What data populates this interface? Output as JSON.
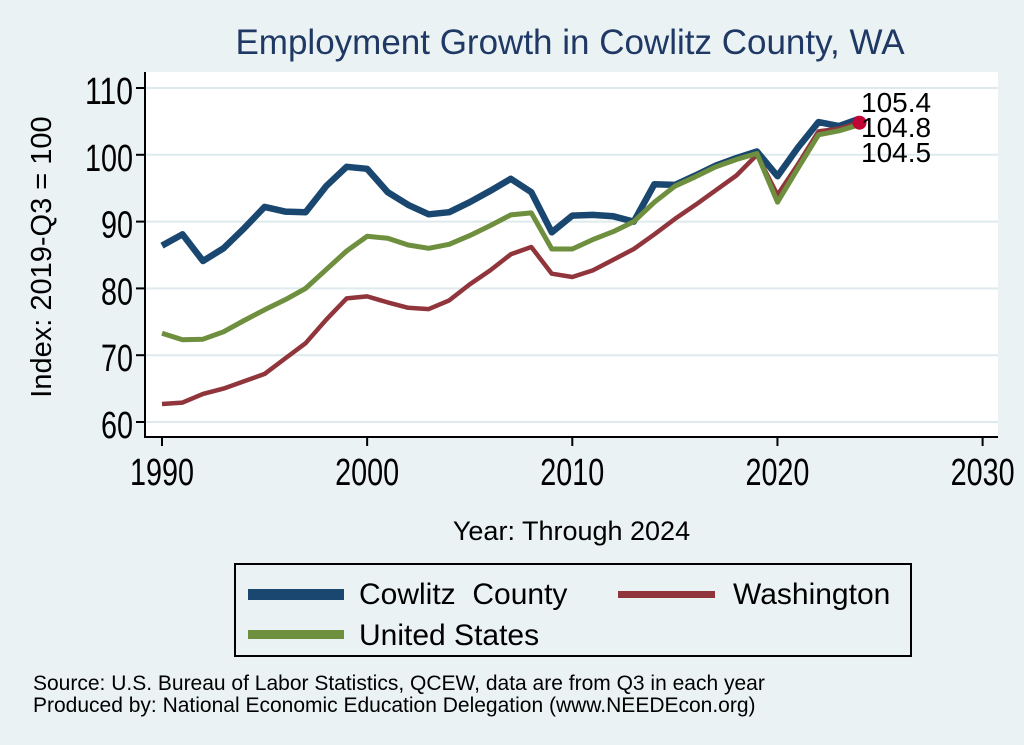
{
  "colors": {
    "background": "#eaf2f3",
    "plot_background": "#ffffff",
    "grid": "#dfeaee",
    "axis": "#000000",
    "title": "#1f3864"
  },
  "legend": {
    "items": [
      {
        "label": "Cowlitz  County",
        "color": "#1a476f"
      },
      {
        "label": "Washington",
        "color": "#90353b"
      },
      {
        "label": "United States",
        "color": "#6e8f3e"
      }
    ]
  },
  "footer": {
    "source": "Source: U.S. Bureau of Labor Statistics, QCEW, data are from Q3 in each year",
    "produced_by": "Produced by: National Economic Education Delegation (www.NEEDEcon.org)"
  },
  "chart_data": {
    "type": "line",
    "title": "Employment Growth in Cowlitz County, WA",
    "xlabel": "Year: Through 2024",
    "ylabel": "Index: 2019-Q3 = 100",
    "grid": "horizontal",
    "legend_position": "bottom",
    "xlim": [
      1989.2,
      2030.8
    ],
    "ylim": [
      57.8,
      112.4
    ],
    "x_ticks": [
      1990,
      2000,
      2010,
      2020,
      2030
    ],
    "y_ticks": [
      60,
      70,
      80,
      90,
      100,
      110
    ],
    "x": [
      1990,
      1991,
      1992,
      1993,
      1994,
      1995,
      1996,
      1997,
      1998,
      1999,
      2000,
      2001,
      2002,
      2003,
      2004,
      2005,
      2006,
      2007,
      2008,
      2009,
      2010,
      2011,
      2012,
      2013,
      2014,
      2015,
      2016,
      2017,
      2018,
      2019,
      2020,
      2021,
      2022,
      2023,
      2024
    ],
    "series": [
      {
        "name": "Cowlitz County",
        "color": "#1a476f",
        "line_width": 6.5,
        "end_label": "105.4",
        "values": [
          86.4,
          88.1,
          84.1,
          86.0,
          89.0,
          92.2,
          91.5,
          91.4,
          95.3,
          98.2,
          97.9,
          94.4,
          92.5,
          91.1,
          91.4,
          92.9,
          94.6,
          96.4,
          94.4,
          88.4,
          90.9,
          91.0,
          90.8,
          90.0,
          95.6,
          95.5,
          96.9,
          98.4,
          99.5,
          100.5,
          96.8,
          101.1,
          104.9,
          104.3,
          105.4
        ]
      },
      {
        "name": "Washington",
        "color": "#90353b",
        "line_width": 4.5,
        "end_label": "104.8",
        "end_marker_color": "#c10534",
        "values": [
          62.7,
          62.9,
          64.2,
          65.0,
          66.1,
          67.2,
          69.5,
          71.8,
          75.3,
          78.5,
          78.8,
          77.9,
          77.1,
          76.9,
          78.2,
          80.6,
          82.7,
          85.1,
          86.2,
          82.2,
          81.7,
          82.7,
          84.3,
          85.9,
          88.1,
          90.4,
          92.5,
          94.7,
          96.9,
          100.0,
          94.0,
          98.6,
          103.5,
          103.9,
          104.8
        ]
      },
      {
        "name": "United States",
        "color": "#6e8f3e",
        "line_width": 5,
        "end_label": "104.5",
        "values": [
          73.3,
          72.3,
          72.4,
          73.5,
          75.2,
          76.8,
          78.3,
          80.0,
          82.8,
          85.6,
          87.8,
          87.5,
          86.5,
          86.0,
          86.6,
          87.9,
          89.4,
          91.0,
          91.3,
          85.9,
          85.9,
          87.3,
          88.5,
          90.0,
          92.9,
          95.3,
          96.7,
          98.2,
          99.3,
          100.2,
          92.9,
          98.0,
          103.0,
          103.6,
          104.5
        ]
      }
    ]
  }
}
